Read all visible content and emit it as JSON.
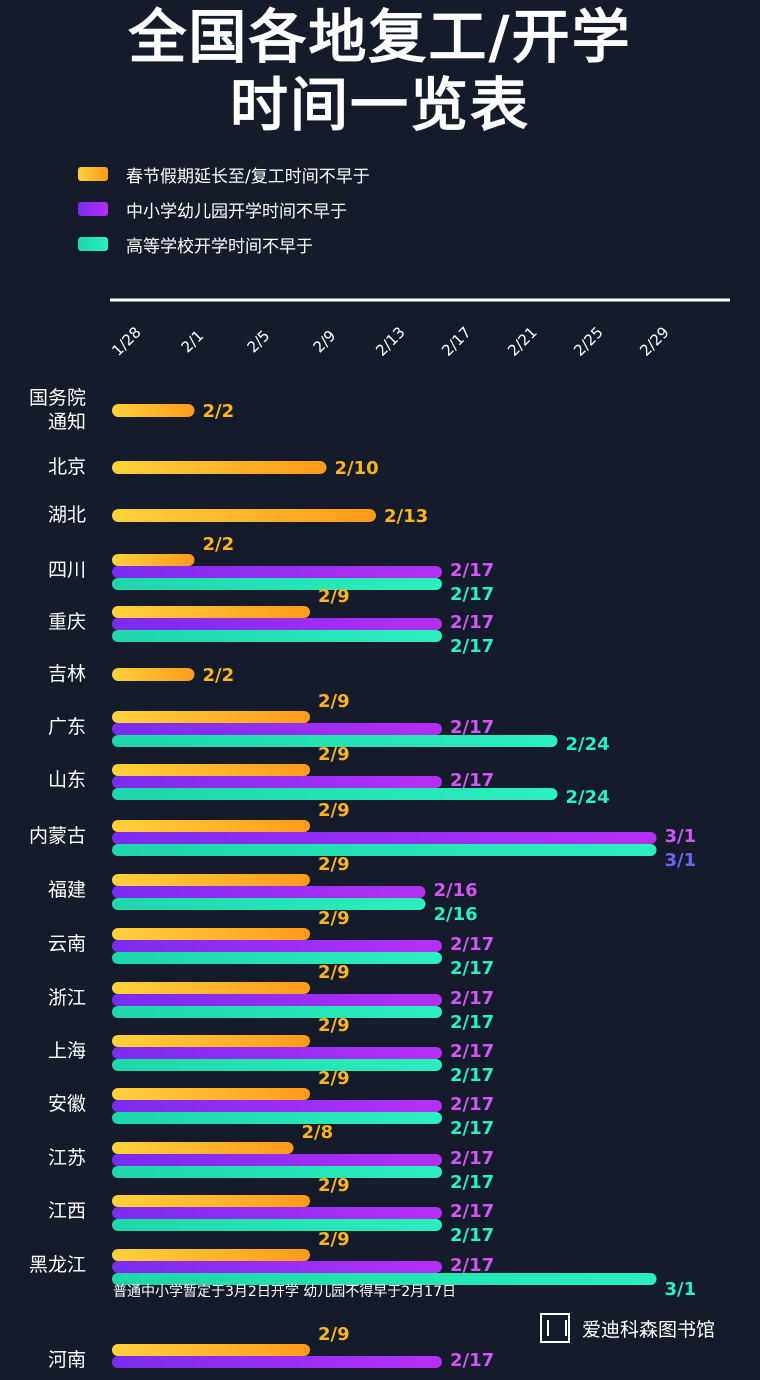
{
  "title_line1": "全国各地复工/开学",
  "title_line2": "时间一览表",
  "legend": [
    {
      "label": "春节假期延长至/复工时间不早于",
      "color": "#ffb31e"
    },
    {
      "label": "中小学幼儿园开学时间不早于",
      "color": "#a72cf5"
    },
    {
      "label": "高等学校开学时间不早于",
      "color": "#22ebb4"
    }
  ],
  "footnote": "普通中小学暂定于3月2日开学 幼儿园不得早于2月17日",
  "watermark": "爱迪科森图书馆",
  "chart_data": {
    "type": "bar",
    "orientation": "horizontal",
    "x_ticks": [
      "1/28",
      "2/1",
      "2/5",
      "2/9",
      "2/13",
      "2/17",
      "2/21",
      "2/25",
      "2/29"
    ],
    "x_start": "1/28",
    "colors": {
      "work": "#ffb31e",
      "school": "#a72cf5",
      "university": "#22ebb4"
    },
    "rows": [
      {
        "name": "国务院\n通知",
        "work": "2/2"
      },
      {
        "name": "北京",
        "work": "2/10"
      },
      {
        "name": "湖北",
        "work": "2/13"
      },
      {
        "name": "四川",
        "work": "2/2",
        "school": "2/17",
        "university": "2/17"
      },
      {
        "name": "重庆",
        "work": "2/9",
        "school": "2/17",
        "university": "2/17"
      },
      {
        "name": "吉林",
        "work": "2/2"
      },
      {
        "name": "广东",
        "work": "2/9",
        "school": "2/17",
        "university": "2/24"
      },
      {
        "name": "山东",
        "work": "2/9",
        "school": "2/17",
        "university": "2/24"
      },
      {
        "name": "内蒙古",
        "work": "2/9",
        "school": "3/1",
        "university": "3/1"
      },
      {
        "name": "福建",
        "work": "2/9",
        "school": "2/16",
        "university": "2/16"
      },
      {
        "name": "云南",
        "work": "2/9",
        "school": "2/17",
        "university": "2/17"
      },
      {
        "name": "浙江",
        "work": "2/9",
        "school": "2/17",
        "university": "2/17"
      },
      {
        "name": "上海",
        "work": "2/9",
        "school": "2/17",
        "university": "2/17"
      },
      {
        "name": "安徽",
        "work": "2/9",
        "school": "2/17",
        "university": "2/17"
      },
      {
        "name": "江苏",
        "work": "2/8",
        "school": "2/17",
        "university": "2/17"
      },
      {
        "name": "江西",
        "work": "2/9",
        "school": "2/17",
        "university": "2/17"
      },
      {
        "name": "黑龙江",
        "work": "2/9",
        "school": "2/17",
        "university": "3/1"
      },
      {
        "name": "河南",
        "work": "2/9",
        "school": "2/17"
      }
    ]
  }
}
